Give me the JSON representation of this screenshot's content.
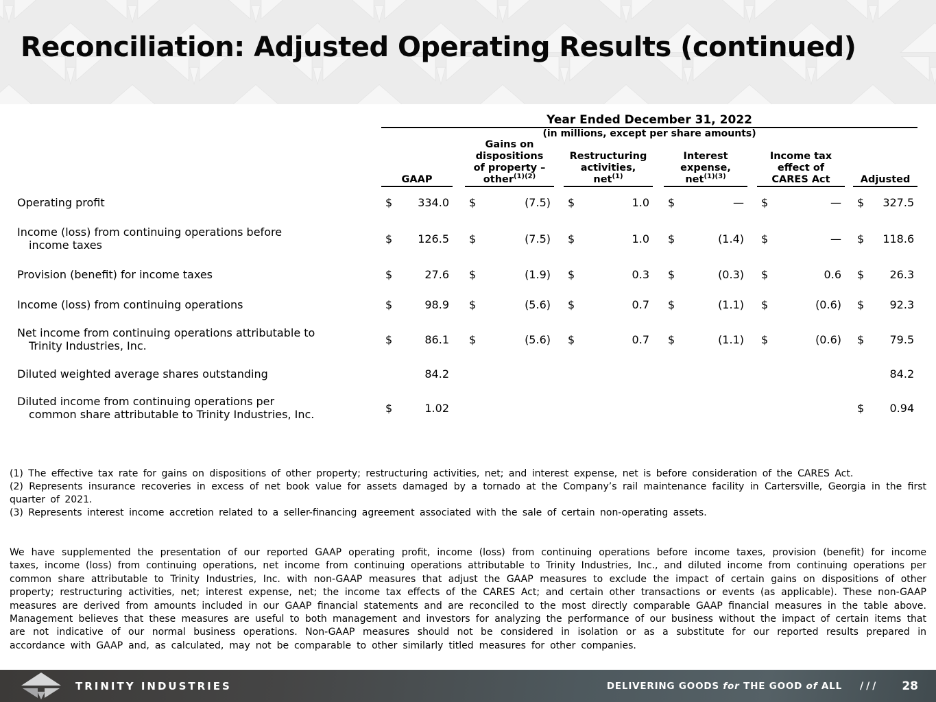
{
  "slide": {
    "title": "Reconciliation: Adjusted Operating Results (continued)"
  },
  "table": {
    "period_header": "Year Ended December 31, 2022",
    "units_note": "(in millions, except per share amounts)",
    "columns": [
      {
        "lines_before": [],
        "last": "GAAP",
        "sup": ""
      },
      {
        "lines_before": [
          "Gains on",
          "dispositions",
          "of property –"
        ],
        "last": "other",
        "sup": "(1)(2)"
      },
      {
        "lines_before": [
          "Restructuring",
          "activities,"
        ],
        "last": "net",
        "sup": "(1)"
      },
      {
        "lines_before": [
          "Interest",
          "expense,"
        ],
        "last": "net",
        "sup": "(1)(3)"
      },
      {
        "lines_before": [
          "Income tax",
          "effect of"
        ],
        "last": "CARES Act",
        "sup": ""
      },
      {
        "lines_before": [],
        "last": "Adjusted",
        "sup": ""
      }
    ],
    "rows": [
      {
        "label": [
          "Operating profit"
        ],
        "cells": [
          {
            "d": "$",
            "v": "334.0"
          },
          {
            "d": "$",
            "v": "(7.5)"
          },
          {
            "d": "$",
            "v": "1.0"
          },
          {
            "d": "$",
            "v": "—"
          },
          {
            "d": "$",
            "v": "—"
          },
          {
            "d": "$",
            "v": "327.5"
          }
        ]
      },
      {
        "label": [
          "Income (loss) from continuing operations before",
          "income taxes"
        ],
        "cells": [
          {
            "d": "$",
            "v": "126.5"
          },
          {
            "d": "$",
            "v": "(7.5)"
          },
          {
            "d": "$",
            "v": "1.0"
          },
          {
            "d": "$",
            "v": "(1.4)"
          },
          {
            "d": "$",
            "v": "—"
          },
          {
            "d": "$",
            "v": "118.6"
          }
        ]
      },
      {
        "label": [
          "Provision (benefit) for income taxes"
        ],
        "cells": [
          {
            "d": "$",
            "v": "27.6"
          },
          {
            "d": "$",
            "v": "(1.9)"
          },
          {
            "d": "$",
            "v": "0.3"
          },
          {
            "d": "$",
            "v": "(0.3)"
          },
          {
            "d": "$",
            "v": "0.6"
          },
          {
            "d": "$",
            "v": "26.3"
          }
        ]
      },
      {
        "label": [
          "Income (loss) from continuing operations"
        ],
        "cells": [
          {
            "d": "$",
            "v": "98.9"
          },
          {
            "d": "$",
            "v": "(5.6)"
          },
          {
            "d": "$",
            "v": "0.7"
          },
          {
            "d": "$",
            "v": "(1.1)"
          },
          {
            "d": "$",
            "v": "(0.6)"
          },
          {
            "d": "$",
            "v": "92.3"
          }
        ]
      },
      {
        "label": [
          "Net income from continuing operations attributable to",
          "Trinity Industries, Inc."
        ],
        "cells": [
          {
            "d": "$",
            "v": "86.1"
          },
          {
            "d": "$",
            "v": "(5.6)"
          },
          {
            "d": "$",
            "v": "0.7"
          },
          {
            "d": "$",
            "v": "(1.1)"
          },
          {
            "d": "$",
            "v": "(0.6)"
          },
          {
            "d": "$",
            "v": "79.5"
          }
        ]
      },
      {
        "label": [
          "Diluted weighted average shares outstanding"
        ],
        "cells": [
          {
            "d": "",
            "v": "84.2"
          },
          {
            "d": "",
            "v": ""
          },
          {
            "d": "",
            "v": ""
          },
          {
            "d": "",
            "v": ""
          },
          {
            "d": "",
            "v": ""
          },
          {
            "d": "",
            "v": "84.2"
          }
        ]
      },
      {
        "label": [
          "Diluted income from continuing operations per",
          "common share attributable to Trinity Industries, Inc."
        ],
        "cells": [
          {
            "d": "$",
            "v": "1.02"
          },
          {
            "d": "",
            "v": ""
          },
          {
            "d": "",
            "v": ""
          },
          {
            "d": "",
            "v": ""
          },
          {
            "d": "",
            "v": ""
          },
          {
            "d": "$",
            "v": "0.94"
          }
        ]
      }
    ]
  },
  "footnotes": [
    "(1) The effective tax rate for gains on dispositions of other property; restructuring activities, net; and interest expense, net is before consideration of the CARES Act.",
    "(2) Represents insurance recoveries in excess of net book value for assets damaged by a tornado at the Company’s rail maintenance facility in Cartersville, Georgia in the first quarter of 2021.",
    "(3) Represents interest income accretion related to a seller-financing agreement associated with the sale of certain non-operating assets."
  ],
  "paragraph": "We have supplemented the presentation of our reported GAAP operating profit, income (loss) from continuing operations before income taxes, provision (benefit) for income taxes, income (loss) from continuing operations, net income from continuing operations attributable to Trinity Industries, Inc., and diluted income from continuing operations per common share attributable to Trinity Industries, Inc. with non-GAAP measures that adjust the GAAP measures to exclude the impact of certain gains on dispositions of other property; restructuring activities, net; interest expense, net; the income tax effects of the CARES Act; and certain other transactions or events (as applicable). These non-GAAP measures are derived from amounts included in our GAAP financial statements and are reconciled to the most directly comparable GAAP financial measures in the table above. Management believes that these measures are useful to both management and investors for analyzing the performance of our business without the impact of certain items that are not indicative of our normal business operations. Non-GAAP measures should not be considered in isolation or as a substitute for our reported results prepared in accordance with GAAP and, as calculated, may not be comparable to other similarly titled measures for other companies.",
  "footer": {
    "brand": "TRINITY INDUSTRIES",
    "tagline_part1": "DELIVERING GOODS",
    "tagline_for": "for",
    "tagline_part2": "THE GOOD",
    "tagline_of": "of",
    "tagline_part3": "ALL",
    "slashes": "///",
    "page_number": "28",
    "colors": {
      "band_bg": "#ececec",
      "footer_left": "#3c3a38",
      "footer_right": "#414b4f",
      "text": "#000000",
      "footer_text": "#ffffff"
    }
  }
}
